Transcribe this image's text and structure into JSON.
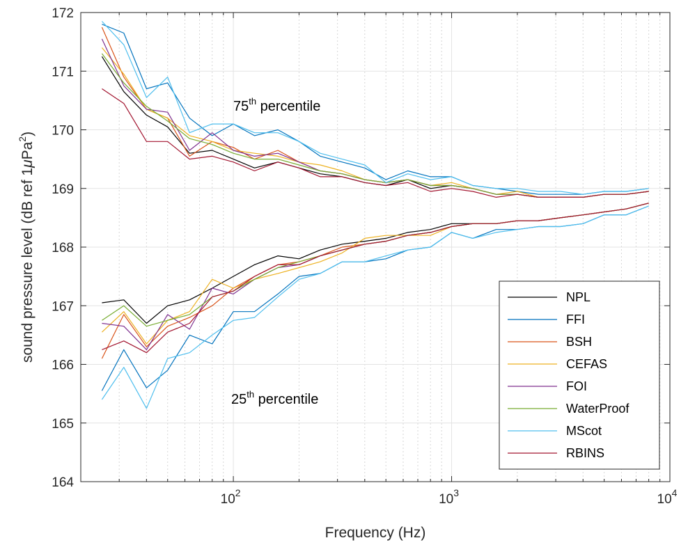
{
  "chart_data": {
    "type": "line",
    "xscale": "log",
    "xlabel": "Frequency (Hz)",
    "ylabel_main": "sound pressure level (dB ref 1",
    "ylabel_mu": "μ",
    "ylabel_unit": "Pa",
    "ylabel_sup": "2",
    "ylabel_close": ")",
    "xlim": [
      20,
      10000
    ],
    "ylim": [
      164,
      172
    ],
    "yticks": [
      "164",
      "165",
      "166",
      "167",
      "168",
      "169",
      "170",
      "171",
      "172"
    ],
    "xticks": [
      {
        "base": "10",
        "exp": "2"
      },
      {
        "base": "10",
        "exp": "3"
      },
      {
        "base": "10",
        "exp": "4"
      }
    ],
    "grid": true,
    "legend_location": "lower-right",
    "annotations": {
      "p75": {
        "num": "75",
        "sup": "th",
        "text": " percentile"
      },
      "p25": {
        "num": "25",
        "sup": "th",
        "text": " percentile"
      }
    },
    "x": [
      25,
      31.5,
      40,
      50,
      63,
      80,
      100,
      125,
      160,
      200,
      250,
      315,
      400,
      500,
      630,
      800,
      1000,
      1250,
      1600,
      2000,
      2500,
      3150,
      4000,
      5000,
      6300,
      8000
    ],
    "series": [
      {
        "name": "NPL",
        "color": "#000000",
        "p75": [
          171.25,
          170.65,
          170.25,
          170.05,
          169.6,
          169.65,
          169.5,
          169.35,
          169.45,
          169.35,
          169.25,
          169.2,
          169.1,
          169.05,
          169.15,
          169.0,
          169.05,
          169.0,
          168.9,
          168.9,
          168.85,
          168.85,
          168.85,
          168.9,
          168.9,
          168.95
        ],
        "p25": [
          167.05,
          167.1,
          166.7,
          167.0,
          167.1,
          167.3,
          167.5,
          167.7,
          167.85,
          167.8,
          167.95,
          168.05,
          168.1,
          168.15,
          168.25,
          168.3,
          168.4,
          168.4,
          168.4,
          168.45,
          168.45,
          168.5,
          168.55,
          168.6,
          168.65,
          168.75
        ]
      },
      {
        "name": "FFI",
        "color": "#0072bd",
        "p75": [
          171.8,
          171.65,
          170.7,
          170.8,
          170.2,
          169.9,
          170.1,
          169.9,
          170.0,
          169.8,
          169.55,
          169.45,
          169.35,
          169.15,
          169.3,
          169.2,
          169.2,
          169.05,
          169.0,
          168.95,
          168.9,
          168.9,
          168.9,
          168.95,
          168.95,
          169.0
        ],
        "p25": [
          165.55,
          166.25,
          165.6,
          165.9,
          166.5,
          166.35,
          166.9,
          166.9,
          167.2,
          167.5,
          167.55,
          167.75,
          167.75,
          167.8,
          167.95,
          168.0,
          168.25,
          168.15,
          168.3,
          168.3,
          168.35,
          168.35,
          168.4,
          168.55,
          168.55,
          168.7
        ]
      },
      {
        "name": "BSH",
        "color": "#d95319",
        "p75": [
          171.75,
          170.9,
          170.35,
          170.2,
          169.55,
          169.8,
          169.7,
          169.5,
          169.65,
          169.45,
          169.3,
          169.25,
          169.15,
          169.1,
          169.15,
          169.05,
          169.05,
          169.0,
          168.9,
          168.9,
          168.85,
          168.85,
          168.85,
          168.9,
          168.9,
          168.95
        ],
        "p25": [
          166.1,
          166.85,
          166.3,
          166.65,
          166.8,
          167.0,
          167.3,
          167.5,
          167.7,
          167.75,
          167.85,
          168.0,
          168.05,
          168.1,
          168.2,
          168.25,
          168.35,
          168.4,
          168.4,
          168.45,
          168.45,
          168.5,
          168.55,
          168.6,
          168.65,
          168.75
        ]
      },
      {
        "name": "CEFAS",
        "color": "#edb120",
        "p75": [
          171.4,
          170.95,
          170.35,
          170.2,
          169.9,
          169.8,
          169.65,
          169.6,
          169.55,
          169.45,
          169.4,
          169.3,
          169.15,
          169.1,
          169.15,
          169.05,
          169.1,
          169.0,
          168.9,
          168.95,
          168.85,
          168.85,
          168.85,
          168.9,
          168.9,
          168.95
        ],
        "p25": [
          166.55,
          166.9,
          166.35,
          166.75,
          166.9,
          167.45,
          167.3,
          167.45,
          167.55,
          167.65,
          167.75,
          167.9,
          168.15,
          168.2,
          168.2,
          168.2,
          168.35,
          168.4,
          168.4,
          168.45,
          168.45,
          168.5,
          168.55,
          168.6,
          168.65,
          168.75
        ]
      },
      {
        "name": "FOI",
        "color": "#7e2f8e",
        "p75": [
          171.55,
          170.75,
          170.35,
          170.3,
          169.65,
          169.95,
          169.65,
          169.55,
          169.6,
          169.45,
          169.3,
          169.25,
          169.15,
          169.1,
          169.15,
          169.05,
          169.05,
          169.0,
          168.9,
          168.9,
          168.85,
          168.85,
          168.85,
          168.9,
          168.9,
          168.95
        ],
        "p25": [
          166.7,
          166.65,
          166.25,
          166.85,
          166.6,
          167.3,
          167.2,
          167.45,
          167.65,
          167.7,
          167.85,
          167.95,
          168.05,
          168.1,
          168.2,
          168.25,
          168.35,
          168.4,
          168.4,
          168.45,
          168.45,
          168.5,
          168.55,
          168.6,
          168.65,
          168.75
        ]
      },
      {
        "name": "WaterProof",
        "color": "#77ac30",
        "p75": [
          171.3,
          170.8,
          170.4,
          170.15,
          169.85,
          169.75,
          169.6,
          169.5,
          169.5,
          169.4,
          169.3,
          169.25,
          169.15,
          169.1,
          169.15,
          169.05,
          169.05,
          169.0,
          168.9,
          168.9,
          168.85,
          168.85,
          168.85,
          168.9,
          168.9,
          168.95
        ],
        "p25": [
          166.75,
          167.0,
          166.65,
          166.75,
          166.85,
          167.15,
          167.25,
          167.45,
          167.65,
          167.75,
          167.85,
          167.95,
          168.05,
          168.1,
          168.2,
          168.25,
          168.35,
          168.4,
          168.4,
          168.45,
          168.45,
          168.5,
          168.55,
          168.6,
          168.65,
          168.75
        ]
      },
      {
        "name": "MScot",
        "color": "#4dbeee",
        "p75": [
          171.85,
          171.45,
          170.55,
          170.9,
          169.95,
          170.1,
          170.1,
          169.95,
          169.95,
          169.8,
          169.6,
          169.5,
          169.4,
          169.1,
          169.25,
          169.15,
          169.2,
          169.05,
          169.0,
          169.0,
          168.95,
          168.95,
          168.9,
          168.95,
          168.95,
          169.0
        ],
        "p25": [
          165.4,
          165.95,
          165.25,
          166.1,
          166.2,
          166.5,
          166.75,
          166.8,
          167.15,
          167.45,
          167.55,
          167.75,
          167.75,
          167.85,
          167.95,
          168.0,
          168.25,
          168.15,
          168.25,
          168.3,
          168.35,
          168.35,
          168.4,
          168.55,
          168.55,
          168.7
        ]
      },
      {
        "name": "RBINS",
        "color": "#a2142f",
        "p75": [
          170.7,
          170.45,
          169.8,
          169.8,
          169.5,
          169.55,
          169.45,
          169.3,
          169.45,
          169.35,
          169.2,
          169.2,
          169.1,
          169.05,
          169.1,
          168.95,
          169.0,
          168.95,
          168.85,
          168.9,
          168.85,
          168.85,
          168.85,
          168.9,
          168.9,
          168.95
        ],
        "p25": [
          166.25,
          166.4,
          166.2,
          166.55,
          166.7,
          167.15,
          167.25,
          167.5,
          167.7,
          167.7,
          167.85,
          167.95,
          168.05,
          168.1,
          168.2,
          168.25,
          168.35,
          168.4,
          168.4,
          168.45,
          168.45,
          168.5,
          168.55,
          168.6,
          168.65,
          168.75
        ]
      }
    ]
  }
}
